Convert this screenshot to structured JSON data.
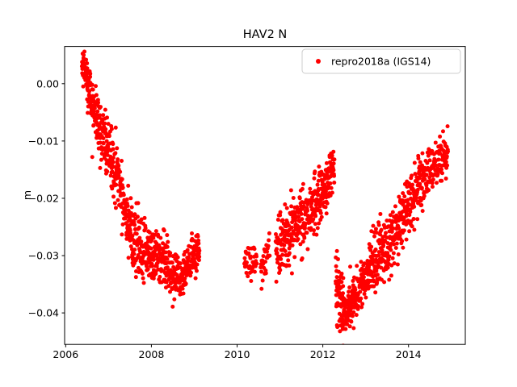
{
  "figure": {
    "background": "#ffffff"
  },
  "chart_data": {
    "type": "scatter",
    "title": "HAV2 N",
    "ylabel": "m",
    "xlabel": "",
    "series_name": "repro2018a (IGS14)",
    "marker_color": "#ff0000",
    "legend_edge_color": "#cccccc",
    "legend_position": "upper right",
    "grid": false,
    "xlim": [
      2005.975,
      2015.325
    ],
    "ylim": [
      -0.0455,
      0.0065
    ],
    "xticks": [
      2006,
      2008,
      2010,
      2012,
      2014
    ],
    "xtick_labels": [
      "2006",
      "2008",
      "2010",
      "2012",
      "2014"
    ],
    "yticks": [
      0.0,
      -0.01,
      -0.02,
      -0.03,
      -0.04
    ],
    "ytick_labels": [
      "0.00",
      "−0.01",
      "−0.02",
      "−0.03",
      "−0.04"
    ],
    "seed": 42,
    "marker_radius_px": 2.5,
    "segments": [
      {
        "x0": 2006.38,
        "x1": 2006.52,
        "y0": 0.0042,
        "y1": 0.0005,
        "n": 45,
        "noise": 0.0012
      },
      {
        "x0": 2006.5,
        "x1": 2006.8,
        "y0": 0.0,
        "y1": -0.0085,
        "n": 95,
        "noise": 0.0022
      },
      {
        "x0": 2006.8,
        "x1": 2007.15,
        "y0": -0.0085,
        "y1": -0.0145,
        "n": 105,
        "noise": 0.0028
      },
      {
        "x0": 2007.15,
        "x1": 2007.55,
        "y0": -0.0145,
        "y1": -0.026,
        "n": 115,
        "noise": 0.0028
      },
      {
        "x0": 2007.55,
        "x1": 2008.05,
        "y0": -0.0275,
        "y1": -0.0305,
        "n": 140,
        "noise": 0.0026
      },
      {
        "x0": 2008.05,
        "x1": 2008.45,
        "y0": -0.03,
        "y1": -0.0315,
        "n": 110,
        "noise": 0.0024
      },
      {
        "x0": 2008.45,
        "x1": 2008.75,
        "y0": -0.0335,
        "y1": -0.0345,
        "n": 85,
        "noise": 0.0018
      },
      {
        "x0": 2008.75,
        "x1": 2009.12,
        "y0": -0.033,
        "y1": -0.0292,
        "n": 100,
        "noise": 0.0018
      },
      {
        "x0": 2010.17,
        "x1": 2010.46,
        "y0": -0.0312,
        "y1": -0.0308,
        "n": 38,
        "noise": 0.0016
      },
      {
        "x0": 2010.55,
        "x1": 2010.76,
        "y0": -0.031,
        "y1": -0.03,
        "n": 28,
        "noise": 0.0016
      },
      {
        "x0": 2010.9,
        "x1": 2011.4,
        "y0": -0.0288,
        "y1": -0.0248,
        "n": 130,
        "noise": 0.0027
      },
      {
        "x0": 2011.4,
        "x1": 2011.9,
        "y0": -0.0248,
        "y1": -0.0205,
        "n": 130,
        "noise": 0.0027
      },
      {
        "x0": 2011.9,
        "x1": 2012.27,
        "y0": -0.02,
        "y1": -0.0148,
        "n": 100,
        "noise": 0.0024
      },
      {
        "x0": 2012.3,
        "x1": 2012.48,
        "y0": -0.0345,
        "y1": -0.0405,
        "n": 70,
        "noise": 0.003
      },
      {
        "x0": 2012.48,
        "x1": 2012.72,
        "y0": -0.0405,
        "y1": -0.0378,
        "n": 75,
        "noise": 0.002
      },
      {
        "x0": 2012.72,
        "x1": 2013.12,
        "y0": -0.0372,
        "y1": -0.0322,
        "n": 105,
        "noise": 0.0024
      },
      {
        "x0": 2013.12,
        "x1": 2013.52,
        "y0": -0.0318,
        "y1": -0.0288,
        "n": 110,
        "noise": 0.0028
      },
      {
        "x0": 2013.52,
        "x1": 2013.97,
        "y0": -0.0282,
        "y1": -0.0218,
        "n": 115,
        "noise": 0.0027
      },
      {
        "x0": 2013.97,
        "x1": 2014.4,
        "y0": -0.021,
        "y1": -0.0165,
        "n": 110,
        "noise": 0.0026
      },
      {
        "x0": 2014.4,
        "x1": 2014.92,
        "y0": -0.0158,
        "y1": -0.0118,
        "n": 115,
        "noise": 0.0019
      }
    ],
    "outliers": [
      [
        2006.62,
        -0.0128
      ],
      [
        2010.3,
        -0.033
      ],
      [
        2010.57,
        -0.0358
      ],
      [
        2011.02,
        -0.0306
      ],
      [
        2012.16,
        -0.0128
      ],
      [
        2012.21,
        -0.0122
      ],
      [
        2012.33,
        -0.0292
      ],
      [
        2012.4,
        -0.0432
      ],
      [
        2012.52,
        -0.0428
      ],
      [
        2013.3,
        -0.0242
      ],
      [
        2014.86,
        -0.0108
      ]
    ]
  }
}
